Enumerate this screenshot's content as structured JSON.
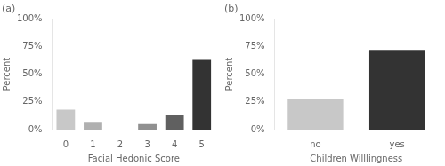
{
  "chart_data": [
    {
      "type": "bar",
      "title": "(a)",
      "categories": [
        "0",
        "1",
        "2",
        "3",
        "4",
        "5"
      ],
      "values": [
        18,
        7,
        0,
        5,
        13,
        63
      ],
      "colors": [
        "#c8c8c8",
        "#b0b0b0",
        "#c8c8c8",
        "#909090",
        "#606060",
        "#333333"
      ],
      "x_label": "Facial Hedonic Score",
      "y_label": "Percent",
      "ylim": [
        0,
        100
      ],
      "yticks": [
        {
          "value": 0,
          "label": "0%"
        },
        {
          "value": 25,
          "label": "25%"
        },
        {
          "value": 50,
          "label": "50%"
        },
        {
          "value": 75,
          "label": "75%"
        },
        {
          "value": 100,
          "label": "100%"
        }
      ],
      "grid": false
    },
    {
      "type": "bar",
      "title": "(b)",
      "categories": [
        "no",
        "yes"
      ],
      "values": [
        28,
        72
      ],
      "colors": [
        "#c8c8c8",
        "#333333"
      ],
      "x_label": "Children Willlingness",
      "y_label": "Percent",
      "ylim": [
        0,
        100
      ],
      "yticks": [
        {
          "value": 0,
          "label": "0%"
        },
        {
          "value": 25,
          "label": "25%"
        },
        {
          "value": 50,
          "label": "50%"
        },
        {
          "value": 75,
          "label": "75%"
        },
        {
          "value": 100,
          "label": "100%"
        }
      ],
      "grid": false
    }
  ]
}
